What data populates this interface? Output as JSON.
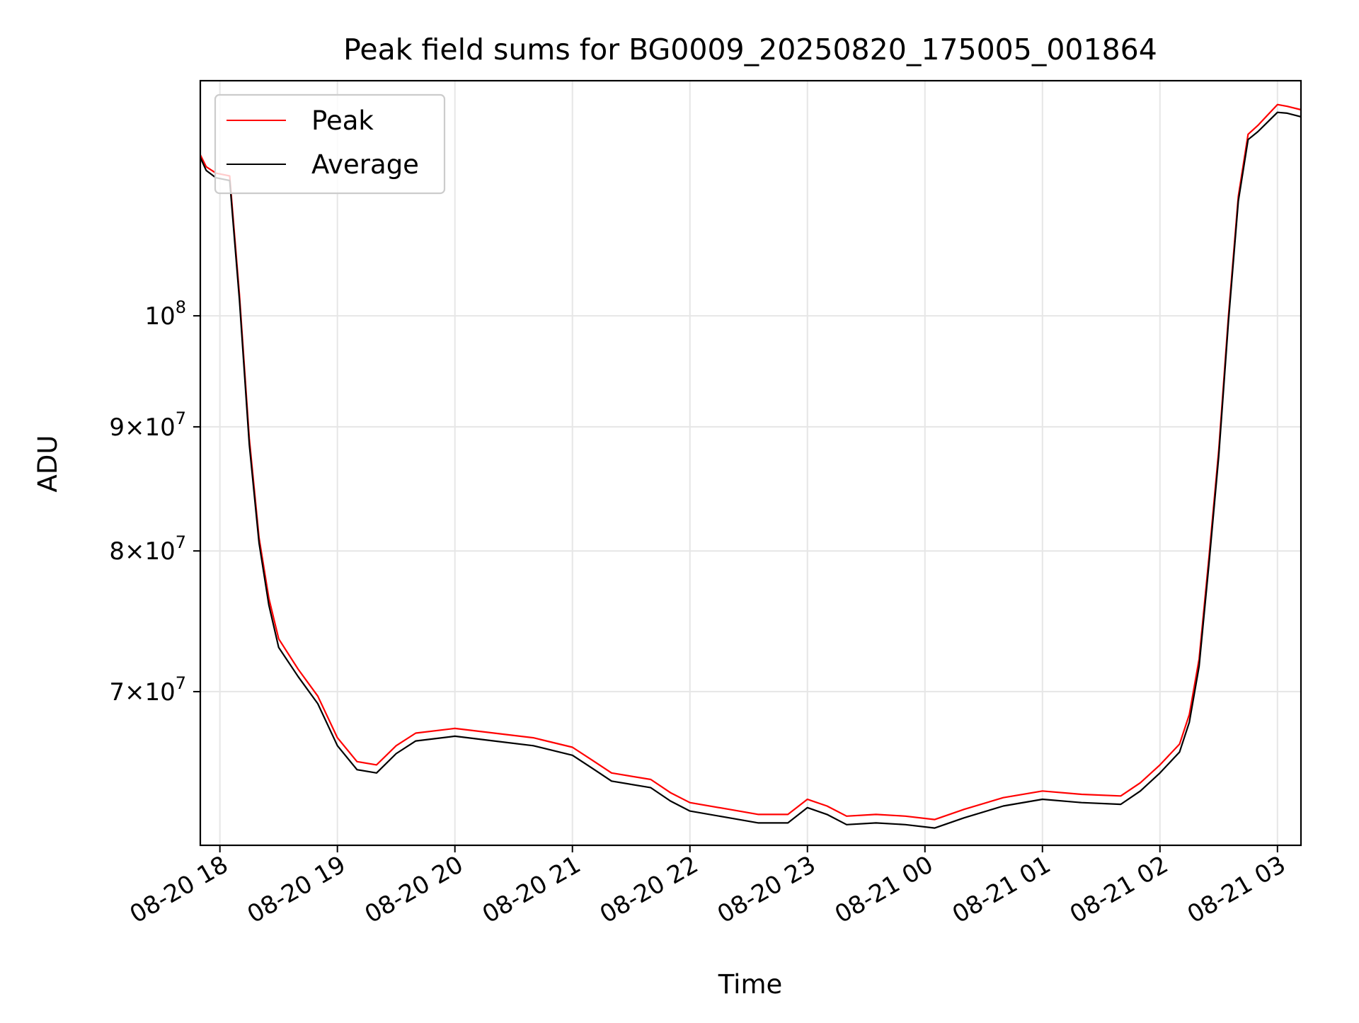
{
  "chart_data": {
    "type": "line",
    "title": "Peak field sums for BG0009_20250820_175005_001864",
    "xlabel": "Time",
    "ylabel": "ADU",
    "y_scale": "log",
    "grid": true,
    "legend_position": "top-left",
    "xlim": [
      "2025-08-20 17:50",
      "2025-08-21 03:12"
    ],
    "ylim": [
      60500000,
      125000000
    ],
    "x_ticks": [
      {
        "t": "2025-08-20 18:00",
        "label": "08-20 18"
      },
      {
        "t": "2025-08-20 19:00",
        "label": "08-20 19"
      },
      {
        "t": "2025-08-20 20:00",
        "label": "08-20 20"
      },
      {
        "t": "2025-08-20 21:00",
        "label": "08-20 21"
      },
      {
        "t": "2025-08-20 22:00",
        "label": "08-20 22"
      },
      {
        "t": "2025-08-20 23:00",
        "label": "08-20 23"
      },
      {
        "t": "2025-08-21 00:00",
        "label": "08-21 00"
      },
      {
        "t": "2025-08-21 01:00",
        "label": "08-21 01"
      },
      {
        "t": "2025-08-21 02:00",
        "label": "08-21 02"
      },
      {
        "t": "2025-08-21 03:00",
        "label": "08-21 03"
      }
    ],
    "y_ticks": [
      {
        "value": 70000000,
        "mant": "7",
        "exp": "7"
      },
      {
        "value": 80000000,
        "mant": "8",
        "exp": "7"
      },
      {
        "value": 90000000,
        "mant": "9",
        "exp": "7"
      },
      {
        "value": 100000000,
        "mant": "",
        "exp": "8"
      }
    ],
    "series": [
      {
        "name": "Peak",
        "color": "#ff0000",
        "x": [
          "2025-08-20 17:50",
          "2025-08-20 17:53",
          "2025-08-20 17:58",
          "2025-08-20 18:05",
          "2025-08-20 18:10",
          "2025-08-20 18:15",
          "2025-08-20 18:20",
          "2025-08-20 18:25",
          "2025-08-20 18:30",
          "2025-08-20 18:40",
          "2025-08-20 18:50",
          "2025-08-20 19:00",
          "2025-08-20 19:10",
          "2025-08-20 19:20",
          "2025-08-20 19:30",
          "2025-08-20 19:40",
          "2025-08-20 20:00",
          "2025-08-20 20:20",
          "2025-08-20 20:40",
          "2025-08-20 21:00",
          "2025-08-20 21:10",
          "2025-08-20 21:20",
          "2025-08-20 21:40",
          "2025-08-20 21:50",
          "2025-08-20 22:00",
          "2025-08-20 22:20",
          "2025-08-20 22:35",
          "2025-08-20 22:50",
          "2025-08-20 23:00",
          "2025-08-20 23:10",
          "2025-08-20 23:20",
          "2025-08-20 23:35",
          "2025-08-20 23:50",
          "2025-08-21 00:05",
          "2025-08-21 00:20",
          "2025-08-21 00:40",
          "2025-08-21 01:00",
          "2025-08-21 01:20",
          "2025-08-21 01:40",
          "2025-08-21 01:50",
          "2025-08-21 02:00",
          "2025-08-21 02:10",
          "2025-08-21 02:15",
          "2025-08-21 02:20",
          "2025-08-21 02:25",
          "2025-08-21 02:30",
          "2025-08-21 02:35",
          "2025-08-21 02:40",
          "2025-08-21 02:45",
          "2025-08-21 02:50",
          "2025-08-21 02:55",
          "2025-08-21 03:00",
          "2025-08-21 03:05",
          "2025-08-21 03:12"
        ],
        "values": [
          116500000,
          115200000,
          114500000,
          114200000,
          102000000,
          89000000,
          81000000,
          76500000,
          73600000,
          71500000,
          69700000,
          67000000,
          65500000,
          65300000,
          66500000,
          67300000,
          67600000,
          67300000,
          67000000,
          66400000,
          65600000,
          64800000,
          64400000,
          63600000,
          63000000,
          62600000,
          62300000,
          62300000,
          63200000,
          62800000,
          62200000,
          62300000,
          62200000,
          62000000,
          62600000,
          63300000,
          63700000,
          63500000,
          63400000,
          64200000,
          65300000,
          66600000,
          68500000,
          72200000,
          79500000,
          88000000,
          100000000,
          112000000,
          118800000,
          119800000,
          121000000,
          122200000,
          122000000,
          121600000
        ]
      },
      {
        "name": "Average",
        "color": "#000000",
        "x": [
          "2025-08-20 17:50",
          "2025-08-20 17:53",
          "2025-08-20 17:58",
          "2025-08-20 18:05",
          "2025-08-20 18:10",
          "2025-08-20 18:15",
          "2025-08-20 18:20",
          "2025-08-20 18:25",
          "2025-08-20 18:30",
          "2025-08-20 18:40",
          "2025-08-20 18:50",
          "2025-08-20 19:00",
          "2025-08-20 19:10",
          "2025-08-20 19:20",
          "2025-08-20 19:30",
          "2025-08-20 19:40",
          "2025-08-20 20:00",
          "2025-08-20 20:20",
          "2025-08-20 20:40",
          "2025-08-20 21:00",
          "2025-08-20 21:10",
          "2025-08-20 21:20",
          "2025-08-20 21:40",
          "2025-08-20 21:50",
          "2025-08-20 22:00",
          "2025-08-20 22:20",
          "2025-08-20 22:35",
          "2025-08-20 22:50",
          "2025-08-20 23:00",
          "2025-08-20 23:10",
          "2025-08-20 23:20",
          "2025-08-20 23:35",
          "2025-08-20 23:50",
          "2025-08-21 00:05",
          "2025-08-21 00:20",
          "2025-08-21 00:40",
          "2025-08-21 01:00",
          "2025-08-21 01:20",
          "2025-08-21 01:40",
          "2025-08-21 01:50",
          "2025-08-21 02:00",
          "2025-08-21 02:10",
          "2025-08-21 02:15",
          "2025-08-21 02:20",
          "2025-08-21 02:25",
          "2025-08-21 02:30",
          "2025-08-21 02:35",
          "2025-08-21 02:40",
          "2025-08-21 02:45",
          "2025-08-21 02:50",
          "2025-08-21 02:55",
          "2025-08-21 03:00",
          "2025-08-21 03:05",
          "2025-08-21 03:12"
        ],
        "values": [
          116200000,
          114800000,
          114000000,
          113700000,
          101500000,
          88500000,
          80600000,
          76000000,
          73000000,
          71000000,
          69200000,
          66500000,
          65000000,
          64800000,
          66000000,
          66800000,
          67100000,
          66800000,
          66500000,
          65900000,
          65100000,
          64300000,
          63900000,
          63100000,
          62500000,
          62100000,
          61800000,
          61800000,
          62700000,
          62300000,
          61700000,
          61800000,
          61700000,
          61500000,
          62100000,
          62800000,
          63200000,
          63000000,
          62900000,
          63700000,
          64800000,
          66100000,
          68000000,
          71700000,
          79000000,
          87500000,
          99500000,
          111500000,
          118200000,
          119100000,
          120200000,
          121300000,
          121200000,
          120800000
        ]
      }
    ]
  }
}
